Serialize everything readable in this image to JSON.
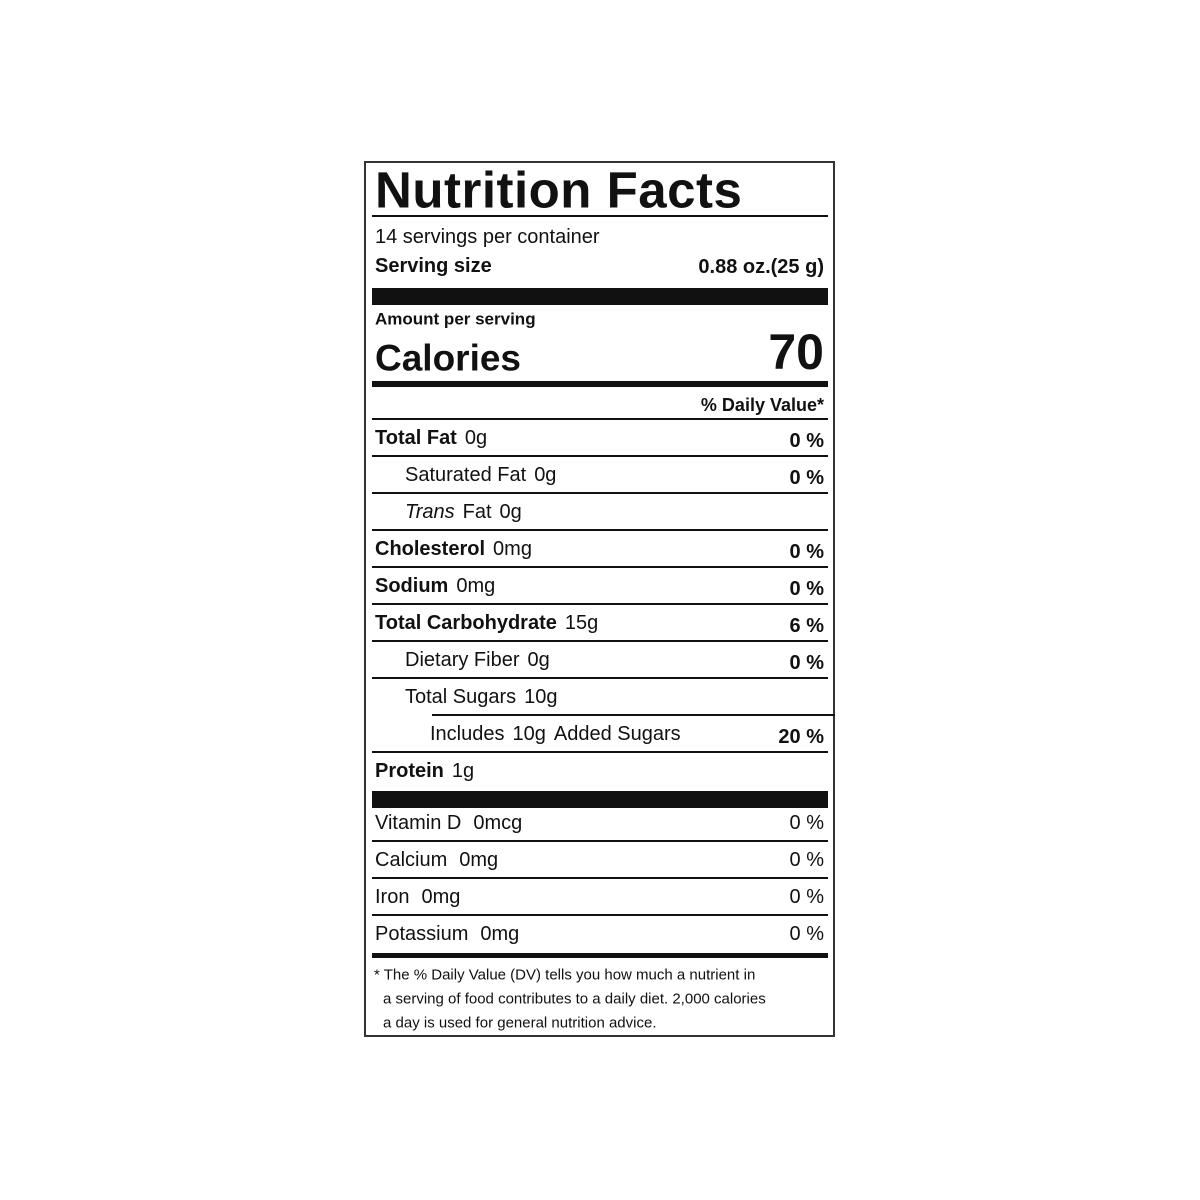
{
  "title": "Nutrition Facts",
  "servings": "14 servings per container",
  "serving_size": {
    "label": "Serving size",
    "value": "0.88 oz.(25 g)"
  },
  "amount_per_serving": "Amount per serving",
  "calories": {
    "label": "Calories",
    "value": "70"
  },
  "daily_value_header": "% Daily Value*",
  "nutrients": [
    {
      "name": "Total Fat",
      "amount": "0g",
      "dv": "0 %",
      "sub": [
        {
          "name": "Saturated Fat",
          "amount": "0g",
          "dv": "0 %"
        },
        {
          "name_italic": "Trans",
          "name": "Fat",
          "amount": "0g"
        }
      ]
    },
    {
      "name": "Cholesterol",
      "amount": "0mg",
      "dv": "0 %"
    },
    {
      "name": "Sodium",
      "amount": "0mg",
      "dv": "0 %"
    },
    {
      "name": "Total Carbohydrate",
      "amount": "15g",
      "dv": "6 %",
      "sub": [
        {
          "name": "Dietary Fiber",
          "amount": "0g",
          "dv": "0 %"
        },
        {
          "name": "Total Sugars",
          "amount": "10g",
          "sub": [
            {
              "prefix": "Includes",
              "amount": "10g",
              "name": "Added Sugars",
              "dv": "20 %"
            }
          ]
        }
      ]
    },
    {
      "name": "Protein",
      "amount": "1g"
    }
  ],
  "vitamins": [
    {
      "name": "Vitamin D",
      "amount": "0mcg",
      "dv": "0 %"
    },
    {
      "name": "Calcium",
      "amount": "0mg",
      "dv": "0 %"
    },
    {
      "name": "Iron",
      "amount": "0mg",
      "dv": "0 %"
    },
    {
      "name": "Potassium",
      "amount": "0mg",
      "dv": "0 %"
    }
  ],
  "footnote": [
    "* The % Daily Value (DV) tells you how much a nutrient in",
    "a serving of food contributes to a daily diet. 2,000 calories",
    "a day is used for general nutrition advice."
  ]
}
